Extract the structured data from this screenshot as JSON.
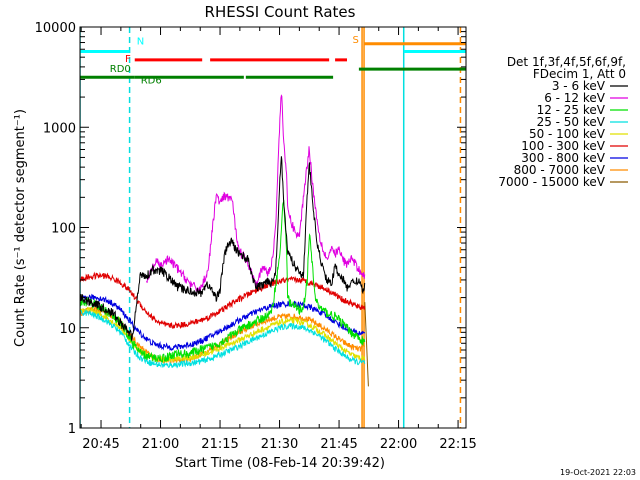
{
  "chart_data": {
    "type": "line",
    "title": "RHESSI Count Rates",
    "xlabel": "Start Time (08-Feb-14 20:39:42)",
    "ylabel": "Count Rate (s⁻¹ detector segment⁻¹)",
    "footer": "19-Oct-2021 22:03",
    "x_range_min": [
      39.7,
      137.0
    ],
    "x_origin_label": "20:00",
    "x_ticks": [
      {
        "min": 45,
        "label": "20:45"
      },
      {
        "min": 60,
        "label": "21:00"
      },
      {
        "min": 75,
        "label": "21:15"
      },
      {
        "min": 90,
        "label": "21:30"
      },
      {
        "min": 105,
        "label": "21:45"
      },
      {
        "min": 120,
        "label": "22:00"
      },
      {
        "min": 135,
        "label": "22:15"
      }
    ],
    "y_scale": "log",
    "ylim": [
      1,
      10000
    ],
    "y_ticks": [
      {
        "v": 1,
        "label": "1"
      },
      {
        "v": 10,
        "label": "10"
      },
      {
        "v": 100,
        "label": "100"
      },
      {
        "v": 1000,
        "label": "1000"
      },
      {
        "v": 10000,
        "label": "10000"
      }
    ],
    "legend": {
      "header": [
        "Det 1f,3f,4f,5f,6f,9f,",
        "FDecim 1, Att 0"
      ],
      "entries": [
        {
          "label": "3 - 6 keV",
          "color": "#000000"
        },
        {
          "label": "6 - 12 keV",
          "color": "#e000e0"
        },
        {
          "label": "12 - 25 keV",
          "color": "#00e000"
        },
        {
          "label": "25 - 50 keV",
          "color": "#00e0e0"
        },
        {
          "label": "50 - 100 keV",
          "color": "#e0e000"
        },
        {
          "label": "100 - 300 keV",
          "color": "#e00000"
        },
        {
          "label": "300 - 800 keV",
          "color": "#0000e0"
        },
        {
          "label": "800 - 7000 keV",
          "color": "#ff8c00"
        },
        {
          "label": "7000 - 15000 keV",
          "color": "#8b5a00"
        }
      ]
    },
    "series": [
      {
        "name": "3 - 6 keV",
        "color": "#000000",
        "x": [
          39.7,
          44,
          48,
          50,
          52,
          53,
          54,
          55,
          56.5,
          57.5,
          58,
          59,
          60,
          62,
          64,
          66,
          68,
          70,
          71,
          72,
          74,
          75,
          76,
          77,
          78,
          79,
          80,
          82,
          84,
          85,
          86,
          87,
          88,
          89,
          90,
          90.5,
          91,
          91.8,
          92,
          93,
          94,
          95,
          96,
          97,
          97.5,
          98.3,
          99,
          99.5,
          100,
          101,
          102,
          103,
          104,
          105,
          106,
          107,
          108,
          110,
          111,
          111.5
        ],
        "y": [
          20,
          17,
          14,
          11,
          9,
          8,
          18,
          35,
          33,
          36,
          39,
          35,
          38,
          32,
          26,
          24,
          23,
          22,
          25,
          27,
          20,
          24,
          50,
          68,
          72,
          60,
          55,
          48,
          25,
          26,
          27,
          30,
          28,
          35,
          250,
          560,
          170,
          80,
          58,
          48,
          40,
          38,
          32,
          220,
          430,
          190,
          100,
          70,
          55,
          38,
          30,
          27,
          40,
          35,
          30,
          25,
          28,
          30,
          22,
          28
        ]
      },
      {
        "name": "6 - 12 keV",
        "color": "#e000e0",
        "x": [
          56.5,
          58,
          59,
          60,
          62,
          64,
          66,
          68,
          70,
          71,
          72,
          74,
          75,
          76,
          77,
          78,
          79,
          80,
          82,
          84,
          85,
          86,
          87,
          88,
          89,
          90,
          90.5,
          91,
          91.8,
          92,
          93,
          94,
          95,
          96,
          97,
          97.5,
          98.3,
          99,
          99.5,
          100,
          101,
          102,
          103,
          104,
          105,
          106,
          107,
          108,
          110,
          111,
          111.5
        ],
        "y": [
          28,
          40,
          45,
          42,
          48,
          40,
          32,
          26,
          24,
          30,
          38,
          210,
          175,
          200,
          200,
          195,
          90,
          58,
          45,
          28,
          34,
          40,
          35,
          42,
          100,
          1000,
          2400,
          800,
          300,
          160,
          110,
          90,
          80,
          200,
          440,
          620,
          280,
          160,
          120,
          85,
          60,
          48,
          60,
          55,
          60,
          48,
          42,
          50,
          38,
          35,
          32
        ]
      },
      {
        "name": "12 - 25 keV",
        "color": "#00e000",
        "x": [
          39.7,
          42,
          46,
          50,
          53,
          55,
          58,
          61,
          64,
          67,
          70,
          73,
          76,
          79,
          82,
          85,
          88,
          90,
          91,
          91.8,
          92,
          93,
          94,
          95,
          96,
          97,
          97.5,
          98.3,
          99,
          100,
          102,
          104,
          106,
          108,
          110,
          111.5
        ],
        "y": [
          18,
          18,
          15,
          11,
          7,
          5.5,
          5,
          5,
          5.5,
          5.5,
          6,
          6.5,
          7.5,
          9,
          10.5,
          12,
          14,
          50,
          200,
          60,
          20,
          17,
          16,
          15,
          16,
          30,
          90,
          40,
          20,
          16,
          14,
          13,
          11,
          9,
          8,
          7
        ]
      },
      {
        "name": "25 - 50 keV",
        "color": "#00e0e0",
        "x": [
          39.7,
          42,
          46,
          50,
          53,
          55,
          58,
          61,
          64,
          67,
          70,
          73,
          76,
          79,
          82,
          85,
          88,
          90,
          92,
          94,
          96,
          98,
          100,
          102,
          104,
          106,
          108,
          110,
          111.5
        ],
        "y": [
          14,
          14,
          12,
          9,
          6,
          5,
          4.4,
          4.2,
          4.3,
          4.4,
          4.6,
          5.0,
          5.6,
          6.3,
          7.2,
          8.2,
          9.2,
          10,
          10.4,
          10.4,
          10,
          9.3,
          8.3,
          7.2,
          6.2,
          5.4,
          4.8,
          4.5,
          4.5
        ]
      },
      {
        "name": "50 - 100 keV",
        "color": "#e0e000",
        "x": [
          39.7,
          42,
          46,
          50,
          53,
          55,
          58,
          61,
          64,
          67,
          70,
          73,
          76,
          79,
          82,
          85,
          88,
          90,
          92,
          94,
          96,
          98,
          100,
          102,
          104,
          106,
          108,
          110,
          111.5
        ],
        "y": [
          15,
          15,
          13,
          10,
          7,
          5.8,
          5.0,
          4.8,
          4.9,
          5.0,
          5.3,
          5.8,
          6.5,
          7.3,
          8.3,
          9.4,
          10.5,
          11.3,
          11.7,
          11.7,
          11.2,
          10.4,
          9.3,
          8.1,
          7.0,
          6.1,
          5.4,
          5.0,
          5.0
        ]
      },
      {
        "name": "100 - 300 keV",
        "color": "#e00000",
        "x": [
          39.7,
          42,
          44,
          46,
          48,
          50,
          52,
          54,
          56,
          58,
          60,
          62,
          64,
          66,
          68,
          70,
          72,
          74,
          76,
          78,
          80,
          82,
          84,
          86,
          88,
          90,
          92,
          94,
          96,
          98,
          100,
          102,
          104,
          106,
          108,
          110,
          111.5
        ],
        "y": [
          30,
          32,
          33,
          33,
          31,
          28,
          24,
          19,
          15,
          12.5,
          11,
          10.5,
          10.5,
          10.8,
          11.2,
          11.8,
          12.7,
          14,
          15.5,
          17.5,
          19.5,
          21.5,
          23.5,
          25.5,
          27.5,
          29,
          30,
          30,
          29.5,
          28,
          26,
          24,
          21.5,
          19,
          17.5,
          16,
          16
        ]
      },
      {
        "name": "300 - 800 keV",
        "color": "#0000e0",
        "x": [
          39.7,
          42,
          44,
          46,
          48,
          50,
          52,
          54,
          56,
          58,
          60,
          62,
          64,
          66,
          68,
          70,
          72,
          74,
          76,
          78,
          80,
          82,
          84,
          86,
          88,
          90,
          92,
          94,
          96,
          98,
          100,
          102,
          104,
          106,
          108,
          110,
          111.5
        ],
        "y": [
          19,
          20,
          20,
          19,
          17.5,
          15,
          12,
          9.5,
          8,
          7,
          6.6,
          6.4,
          6.4,
          6.6,
          6.9,
          7.3,
          8,
          8.8,
          9.8,
          10.8,
          12,
          13.2,
          14.4,
          15.5,
          16.4,
          17,
          17.4,
          17.3,
          16.8,
          15.8,
          14.5,
          13,
          11.5,
          10.2,
          9.3,
          8.8,
          9
        ]
      },
      {
        "name": "800 - 7000 keV",
        "color": "#ff8c00",
        "x": [
          39.7,
          42,
          44,
          46,
          48,
          50,
          52,
          54,
          56,
          58,
          60,
          62,
          64,
          66,
          68,
          70,
          72,
          74,
          76,
          78,
          80,
          82,
          84,
          86,
          88,
          90,
          92,
          94,
          96,
          98,
          100,
          102,
          104,
          106,
          108,
          110,
          111.5
        ],
        "y": [
          14,
          15,
          15,
          14.5,
          13,
          11.5,
          9,
          7,
          5.8,
          5.1,
          4.8,
          4.7,
          4.7,
          4.8,
          5.0,
          5.4,
          5.9,
          6.5,
          7.3,
          8.1,
          9.0,
          9.9,
          10.8,
          11.6,
          12.3,
          12.8,
          13.0,
          12.9,
          12.5,
          11.7,
          10.6,
          9.4,
          8.2,
          7.2,
          6.5,
          6.1,
          6.3
        ]
      },
      {
        "name": "7000 - 15000 keV",
        "color": "#8b5a00",
        "x": [
          111.5,
          112.4
        ],
        "y": [
          18,
          2.6
        ]
      }
    ],
    "markers": [
      {
        "min": 39.7,
        "color": "#00e0e0",
        "style": "solid"
      },
      {
        "min": 52.2,
        "color": "#00e0e0",
        "style": "dashed"
      },
      {
        "min": 110.8,
        "color": "#ff8c00",
        "style": "solid"
      },
      {
        "min": 111.3,
        "color": "#ff8c00",
        "style": "solid"
      },
      {
        "min": 121.3,
        "color": "#00e0e0",
        "style": "solid"
      },
      {
        "min": 135.6,
        "color": "#ff8c00",
        "style": "dashed"
      }
    ],
    "flag_bars": [
      {
        "label": "N",
        "color": "#00ffff",
        "y": 5700,
        "segments": [
          [
            39.7,
            52.2
          ],
          [
            121.3,
            137
          ]
        ]
      },
      {
        "label": "S",
        "color": "#ff8c00",
        "y": 6800,
        "segments": [
          [
            111.3,
            137
          ]
        ]
      },
      {
        "label": "F",
        "color": "#ff0000",
        "y": 4700,
        "segments": [
          [
            53.5,
            70.5
          ],
          [
            72.5,
            102.5
          ],
          [
            104,
            107
          ]
        ]
      },
      {
        "label": "RD0",
        "color": "#008000",
        "y": 3800,
        "segments": [
          [
            110,
            137
          ]
        ]
      },
      {
        "label": "RD6",
        "color": "#008000",
        "y": 3150,
        "segments": [
          [
            39.7,
            53.5
          ],
          [
            53.5,
            81
          ],
          [
            81.5,
            103.5
          ]
        ]
      }
    ]
  }
}
